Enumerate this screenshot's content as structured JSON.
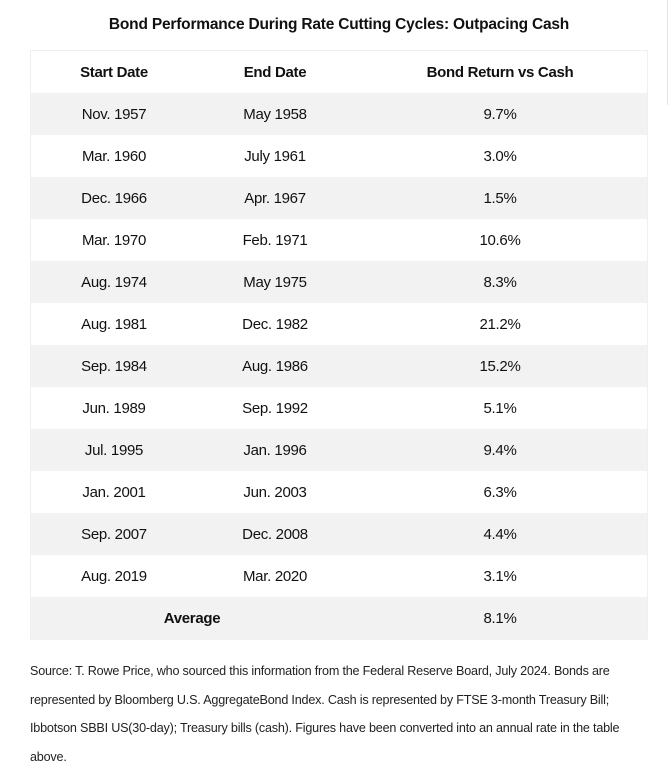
{
  "title": "Bond Performance During Rate Cutting Cycles: Outpacing Cash",
  "table": {
    "headers": [
      "Start Date",
      "End Date",
      "Bond Return vs Cash"
    ],
    "rows": [
      [
        "Nov. 1957",
        "May 1958",
        "9.7%"
      ],
      [
        "Mar. 1960",
        "July 1961",
        "3.0%"
      ],
      [
        "Dec. 1966",
        "Apr. 1967",
        "1.5%"
      ],
      [
        "Mar. 1970",
        "Feb. 1971",
        "10.6%"
      ],
      [
        "Aug. 1974",
        "May 1975",
        "8.3%"
      ],
      [
        "Aug. 1981",
        "Dec. 1982",
        "21.2%"
      ],
      [
        "Sep. 1984",
        "Aug. 1986",
        "15.2%"
      ],
      [
        "Jun. 1989",
        "Sep. 1992",
        "5.1%"
      ],
      [
        "Jul. 1995",
        "Jan. 1996",
        "9.4%"
      ],
      [
        "Jan. 2001",
        "Jun. 2003",
        "6.3%"
      ],
      [
        "Sep. 2007",
        "Dec. 2008",
        "4.4%"
      ],
      [
        "Aug. 2019",
        "Mar. 2020",
        "3.1%"
      ]
    ],
    "average": {
      "label": "Average",
      "value": "8.1%"
    }
  },
  "footer": "Source: T. Rowe Price, who sourced this information from the Federal Reserve Board, July 2024. Bonds are represented by Bloomberg U.S. AggregateBond Index. Cash is represented by FTSE 3-month Treasury Bill; Ibbotson SBBI US(30-day); Treasury bills (cash). Figures have been converted into an annual rate in the table above."
}
